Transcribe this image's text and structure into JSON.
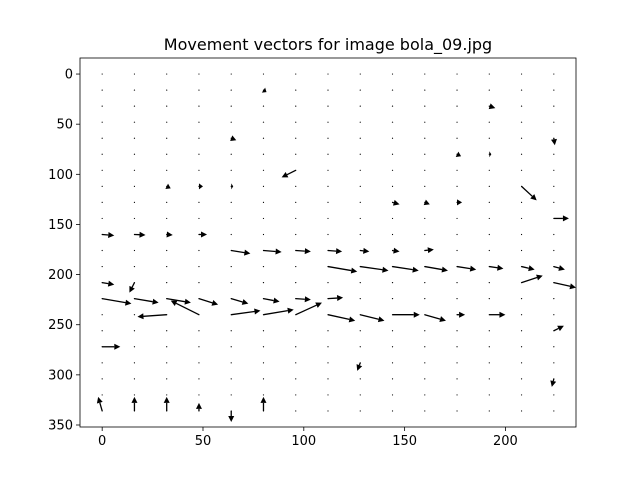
{
  "chart_data": {
    "type": "quiver",
    "title": "Movement vectors for image bola_09.jpg",
    "color": "#000000",
    "xlim": [
      -11,
      235
    ],
    "ylim": [
      -16,
      352
    ],
    "y_inverted": true,
    "xticks": [
      0,
      50,
      100,
      150,
      200
    ],
    "yticks": [
      0,
      50,
      100,
      150,
      200,
      250,
      300,
      350
    ],
    "grid_x": [
      0,
      16,
      32,
      48,
      64,
      80,
      96,
      112,
      128,
      144,
      160,
      176,
      192,
      208,
      224
    ],
    "grid_y": [
      0,
      16,
      32,
      48,
      64,
      80,
      96,
      112,
      128,
      144,
      160,
      176,
      192,
      208,
      224,
      240,
      256,
      272,
      288,
      304,
      320,
      336
    ],
    "vectors": [
      {
        "x": 80,
        "y": 16,
        "u": 1.5,
        "v": 2
      },
      {
        "x": 192,
        "y": 32,
        "u": 3,
        "v": 2
      },
      {
        "x": 64,
        "y": 64,
        "u": 2.5,
        "v": 2
      },
      {
        "x": 224,
        "y": 64,
        "u": 0.5,
        "v": 7
      },
      {
        "x": 176,
        "y": 80,
        "u": 2,
        "v": 2
      },
      {
        "x": 192,
        "y": 80,
        "u": 1,
        "v": 0
      },
      {
        "x": 96,
        "y": 96,
        "u": -7,
        "v": 7
      },
      {
        "x": 208,
        "y": 112,
        "u": 7.5,
        "v": 14
      },
      {
        "x": 32,
        "y": 112,
        "u": 2,
        "v": 2
      },
      {
        "x": 48,
        "y": 112,
        "u": 2,
        "v": 0
      },
      {
        "x": 64,
        "y": 112,
        "u": 1,
        "v": 0
      },
      {
        "x": 144,
        "y": 128,
        "u": 3.5,
        "v": 2
      },
      {
        "x": 160,
        "y": 128,
        "u": 2.5,
        "v": 2
      },
      {
        "x": 176,
        "y": 128,
        "u": 2.5,
        "v": 0
      },
      {
        "x": 224,
        "y": 144,
        "u": 7.5,
        "v": 0
      },
      {
        "x": 0,
        "y": 160,
        "u": 6,
        "v": 1
      },
      {
        "x": 16,
        "y": 160,
        "u": 5.5,
        "v": 0.5
      },
      {
        "x": 32,
        "y": 160,
        "u": 3,
        "v": 0.5
      },
      {
        "x": 48,
        "y": 160,
        "u": 4,
        "v": 0
      },
      {
        "x": 64,
        "y": 176,
        "u": 9.5,
        "v": 3
      },
      {
        "x": 80,
        "y": 176,
        "u": 9,
        "v": 1.5
      },
      {
        "x": 96,
        "y": 176,
        "u": 7.5,
        "v": 1
      },
      {
        "x": 112,
        "y": 176,
        "u": 7,
        "v": 1
      },
      {
        "x": 128,
        "y": 176,
        "u": 4.5,
        "v": 1
      },
      {
        "x": 144,
        "y": 176,
        "u": 3.5,
        "v": 1
      },
      {
        "x": 160,
        "y": 176,
        "u": 4.5,
        "v": -1
      },
      {
        "x": 112,
        "y": 192,
        "u": 14.5,
        "v": 5
      },
      {
        "x": 128,
        "y": 192,
        "u": 14,
        "v": 4
      },
      {
        "x": 144,
        "y": 192,
        "u": 13,
        "v": 4
      },
      {
        "x": 160,
        "y": 192,
        "u": 11.5,
        "v": 4
      },
      {
        "x": 176,
        "y": 192,
        "u": 9.5,
        "v": 3
      },
      {
        "x": 192,
        "y": 192,
        "u": 7,
        "v": 2
      },
      {
        "x": 208,
        "y": 192,
        "u": 6.5,
        "v": 3
      },
      {
        "x": 224,
        "y": 192,
        "u": 5.5,
        "v": 3
      },
      {
        "x": 0,
        "y": 208,
        "u": 6,
        "v": 2
      },
      {
        "x": 16,
        "y": 208,
        "u": -2.5,
        "v": 10
      },
      {
        "x": 208,
        "y": 208,
        "u": 10.5,
        "v": -7
      },
      {
        "x": 224,
        "y": 208,
        "u": 11,
        "v": 5
      },
      {
        "x": 0,
        "y": 224,
        "u": 14.5,
        "v": 5
      },
      {
        "x": 16,
        "y": 224,
        "u": 12,
        "v": 4
      },
      {
        "x": 32,
        "y": 224,
        "u": 12,
        "v": 4
      },
      {
        "x": 48,
        "y": 224,
        "u": 9.5,
        "v": 6
      },
      {
        "x": 64,
        "y": 224,
        "u": 8.5,
        "v": 5
      },
      {
        "x": 80,
        "y": 224,
        "u": 8,
        "v": 3
      },
      {
        "x": 96,
        "y": 224,
        "u": 7.5,
        "v": 1
      },
      {
        "x": 112,
        "y": 224,
        "u": 7.5,
        "v": -1
      },
      {
        "x": 32,
        "y": 240,
        "u": -14.5,
        "v": 2
      },
      {
        "x": 48,
        "y": 240,
        "u": -14,
        "v": -14
      },
      {
        "x": 64,
        "y": 240,
        "u": 14.5,
        "v": -4
      },
      {
        "x": 80,
        "y": 240,
        "u": 15,
        "v": -5
      },
      {
        "x": 96,
        "y": 240,
        "u": 13,
        "v": -12
      },
      {
        "x": 112,
        "y": 240,
        "u": 13.5,
        "v": 6
      },
      {
        "x": 128,
        "y": 240,
        "u": 12,
        "v": 6
      },
      {
        "x": 144,
        "y": 240,
        "u": 13.5,
        "v": 0
      },
      {
        "x": 160,
        "y": 240,
        "u": 10.5,
        "v": 6
      },
      {
        "x": 176,
        "y": 240,
        "u": 4,
        "v": 0
      },
      {
        "x": 192,
        "y": 240,
        "u": 8,
        "v": 0
      },
      {
        "x": 224,
        "y": 256,
        "u": 5,
        "v": -5
      },
      {
        "x": 0,
        "y": 272,
        "u": 9,
        "v": 0
      },
      {
        "x": 128,
        "y": 288,
        "u": -1.5,
        "v": 8
      },
      {
        "x": 224,
        "y": 304,
        "u": -1,
        "v": 8
      },
      {
        "x": 0,
        "y": 336,
        "u": -2,
        "v": -14
      },
      {
        "x": 16,
        "y": 336,
        "u": 0,
        "v": -14
      },
      {
        "x": 32,
        "y": 336,
        "u": 0,
        "v": -14
      },
      {
        "x": 48,
        "y": 336,
        "u": 0,
        "v": -8
      },
      {
        "x": 64,
        "y": 336,
        "u": 0,
        "v": 11
      },
      {
        "x": 80,
        "y": 336,
        "u": 0,
        "v": -14
      }
    ]
  }
}
